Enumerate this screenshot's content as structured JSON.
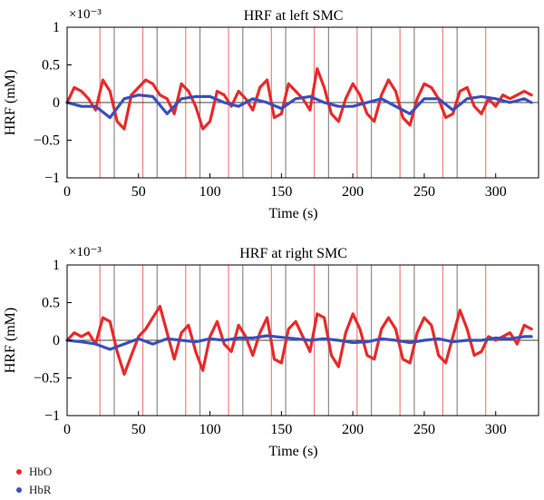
{
  "legend": [
    {
      "name": "HbO",
      "color": "#e82a2a"
    },
    {
      "name": "HbR",
      "color": "#3a4fb8"
    }
  ],
  "chart_data": [
    {
      "type": "line",
      "title": "HRF at left SMC",
      "xlabel": "Time (s)",
      "ylabel": "HRF (mM)",
      "scale_label": "×10⁻³",
      "xlim": [
        0,
        330
      ],
      "ylim": [
        -1,
        1
      ],
      "xticks": [
        0,
        50,
        100,
        150,
        200,
        250,
        300
      ],
      "yticks": [
        -1,
        -0.5,
        0,
        0.5,
        1
      ],
      "ytick_labels": [
        "−1",
        "−0.5",
        "0",
        "0.5",
        "1"
      ],
      "red_markers": [
        23,
        53,
        83,
        113,
        143,
        173,
        203,
        233,
        263,
        293
      ],
      "gray_markers": [
        33,
        63,
        93,
        123,
        153,
        183,
        213,
        243,
        273
      ],
      "series": [
        {
          "name": "HbO",
          "color": "#e82a2a",
          "x": [
            0,
            5,
            10,
            15,
            20,
            25,
            30,
            35,
            40,
            45,
            50,
            55,
            60,
            65,
            70,
            75,
            80,
            85,
            90,
            95,
            100,
            105,
            110,
            115,
            120,
            125,
            130,
            135,
            140,
            145,
            150,
            155,
            160,
            165,
            170,
            175,
            180,
            185,
            190,
            195,
            200,
            205,
            210,
            215,
            220,
            225,
            230,
            235,
            240,
            245,
            250,
            255,
            260,
            265,
            270,
            275,
            280,
            285,
            290,
            295,
            300,
            305,
            310,
            315,
            320,
            325
          ],
          "y": [
            0,
            0.2,
            0.15,
            0.05,
            -0.1,
            0.3,
            0.15,
            -0.25,
            -0.35,
            0.1,
            0.2,
            0.3,
            0.25,
            0.1,
            0.05,
            -0.15,
            0.25,
            0.15,
            -0.05,
            -0.35,
            -0.25,
            0.15,
            0.1,
            -0.05,
            0.15,
            0.05,
            -0.1,
            0.2,
            0.3,
            -0.2,
            -0.15,
            0.25,
            0.15,
            0.05,
            -0.1,
            0.45,
            0.2,
            -0.15,
            -0.25,
            0.05,
            0.25,
            0.1,
            -0.15,
            -0.25,
            0.1,
            0.3,
            0.15,
            -0.2,
            -0.3,
            0.05,
            0.25,
            0.2,
            0.05,
            -0.2,
            -0.15,
            0.15,
            0.2,
            -0.05,
            -0.15,
            0.05,
            -0.05,
            0.1,
            0.05,
            0.1,
            0.15,
            0.1
          ]
        },
        {
          "name": "HbR",
          "color": "#3a4fb8",
          "x": [
            0,
            10,
            20,
            30,
            40,
            50,
            60,
            70,
            80,
            90,
            100,
            110,
            120,
            130,
            140,
            150,
            160,
            170,
            180,
            190,
            200,
            210,
            220,
            230,
            240,
            250,
            260,
            270,
            280,
            290,
            300,
            310,
            320,
            325
          ],
          "y": [
            0,
            -0.05,
            -0.05,
            -0.2,
            0.05,
            0.1,
            0.08,
            -0.15,
            0.05,
            0.08,
            0.08,
            0.0,
            -0.05,
            0.05,
            0.0,
            -0.08,
            0.05,
            0.08,
            0.0,
            -0.05,
            -0.05,
            0.0,
            0.05,
            -0.05,
            -0.15,
            0.05,
            0.05,
            -0.1,
            0.05,
            0.08,
            0.05,
            0.0,
            0.05,
            0.0
          ]
        }
      ]
    },
    {
      "type": "line",
      "title": "HRF at right SMC",
      "xlabel": "Time (s)",
      "ylabel": "HRF (mM)",
      "scale_label": "×10⁻³",
      "xlim": [
        0,
        330
      ],
      "ylim": [
        -1,
        1
      ],
      "xticks": [
        0,
        50,
        100,
        150,
        200,
        250,
        300
      ],
      "yticks": [
        -1,
        -0.5,
        0,
        0.5,
        1
      ],
      "ytick_labels": [
        "−1",
        "−0.5",
        "0",
        "0.5",
        "1"
      ],
      "red_markers": [
        23,
        53,
        83,
        113,
        143,
        173,
        203,
        233,
        263,
        293
      ],
      "gray_markers": [
        33,
        63,
        93,
        123,
        153,
        183,
        213,
        243,
        273
      ],
      "series": [
        {
          "name": "HbO",
          "color": "#e82a2a",
          "x": [
            0,
            5,
            10,
            15,
            20,
            25,
            30,
            35,
            40,
            45,
            50,
            55,
            60,
            65,
            70,
            75,
            80,
            85,
            90,
            95,
            100,
            105,
            110,
            115,
            120,
            125,
            130,
            135,
            140,
            145,
            150,
            155,
            160,
            165,
            170,
            175,
            180,
            185,
            190,
            195,
            200,
            205,
            210,
            215,
            220,
            225,
            230,
            235,
            240,
            245,
            250,
            255,
            260,
            265,
            270,
            275,
            280,
            285,
            290,
            295,
            300,
            305,
            310,
            315,
            320,
            325
          ],
          "y": [
            0,
            0.1,
            0.05,
            0.1,
            -0.05,
            0.3,
            0.25,
            -0.15,
            -0.45,
            -0.2,
            0.05,
            0.15,
            0.3,
            0.45,
            0.1,
            -0.25,
            0.1,
            0.2,
            -0.15,
            -0.4,
            0.05,
            0.25,
            -0.05,
            -0.15,
            0.2,
            0.05,
            -0.2,
            0.1,
            0.3,
            -0.25,
            -0.3,
            0.15,
            0.25,
            0.05,
            -0.15,
            0.35,
            0.3,
            -0.2,
            -0.35,
            0.1,
            0.35,
            0.15,
            -0.2,
            -0.25,
            0.15,
            0.3,
            0.15,
            -0.25,
            -0.3,
            0.1,
            0.3,
            0.2,
            -0.2,
            -0.3,
            0.05,
            0.4,
            0.15,
            -0.2,
            -0.15,
            0.05,
            0.0,
            0.05,
            0.1,
            -0.05,
            0.2,
            0.15
          ]
        },
        {
          "name": "HbR",
          "color": "#3a4fb8",
          "x": [
            0,
            10,
            20,
            30,
            40,
            50,
            60,
            70,
            80,
            90,
            100,
            110,
            120,
            130,
            140,
            150,
            160,
            170,
            180,
            190,
            200,
            210,
            220,
            230,
            240,
            250,
            260,
            270,
            280,
            290,
            300,
            310,
            320,
            325
          ],
          "y": [
            0,
            -0.02,
            -0.05,
            -0.12,
            -0.05,
            0.02,
            -0.05,
            0.02,
            0.0,
            -0.02,
            0.02,
            0.0,
            0.03,
            0.03,
            0.06,
            0.04,
            0.02,
            0.0,
            0.02,
            0.0,
            -0.03,
            -0.02,
            0.02,
            0.0,
            -0.03,
            0.0,
            0.02,
            -0.02,
            0.0,
            0.0,
            0.03,
            0.02,
            0.05,
            0.05
          ]
        }
      ]
    }
  ]
}
